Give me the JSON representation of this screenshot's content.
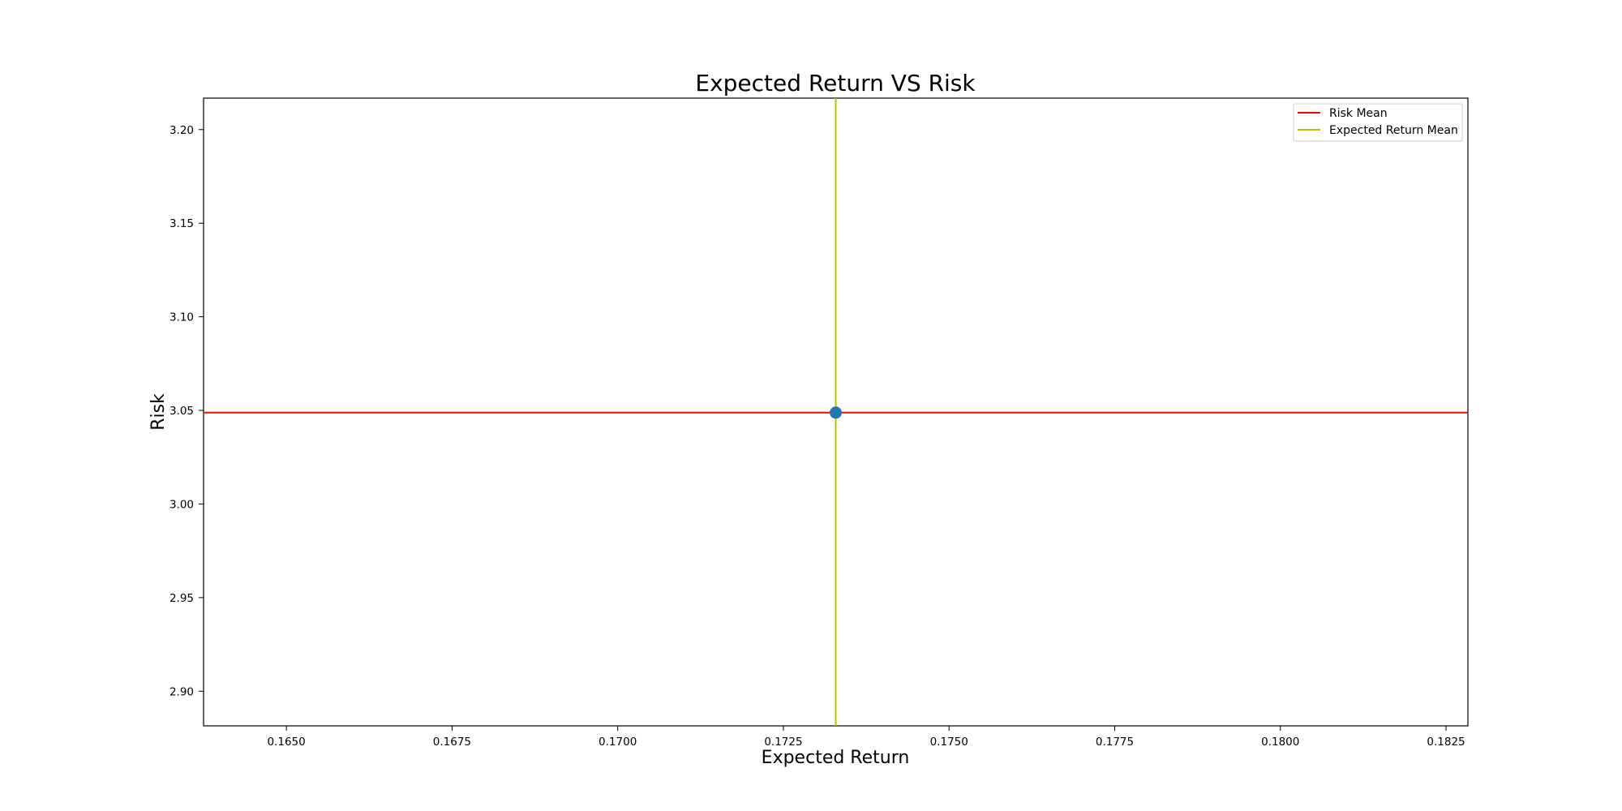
{
  "chart_data": {
    "type": "scatter",
    "title": "Expected Return VS Risk",
    "xlabel": "Expected Return",
    "ylabel": "Risk",
    "xlim": [
      0.16375,
      0.18283
    ],
    "ylim": [
      2.8815,
      3.2168
    ],
    "xticks": [
      "0.1650",
      "0.1675",
      "0.1700",
      "0.1725",
      "0.1750",
      "0.1775",
      "0.1800",
      "0.1825"
    ],
    "xtick_values": [
      0.165,
      0.1675,
      0.17,
      0.1725,
      0.175,
      0.1775,
      0.18,
      0.1825
    ],
    "yticks": [
      "2.90",
      "2.95",
      "3.00",
      "3.05",
      "3.10",
      "3.15",
      "3.20"
    ],
    "ytick_values": [
      2.9,
      2.95,
      3.0,
      3.05,
      3.1,
      3.15,
      3.2
    ],
    "points": [
      {
        "x": 0.17329,
        "y": 3.0488
      }
    ],
    "point_color": "#1f77b4",
    "reference_lines": [
      {
        "name": "Risk Mean",
        "orientation": "horizontal",
        "value": 3.0488,
        "color": "#ff0000"
      },
      {
        "name": "Expected Return Mean",
        "orientation": "vertical",
        "value": 0.17329,
        "color": "#bfbf00"
      }
    ],
    "legend": {
      "placement": "top-right",
      "entries": [
        {
          "label": "Risk Mean",
          "color": "#ff0000"
        },
        {
          "label": "Expected Return Mean",
          "color": "#bfbf00"
        }
      ]
    },
    "grid": false
  }
}
